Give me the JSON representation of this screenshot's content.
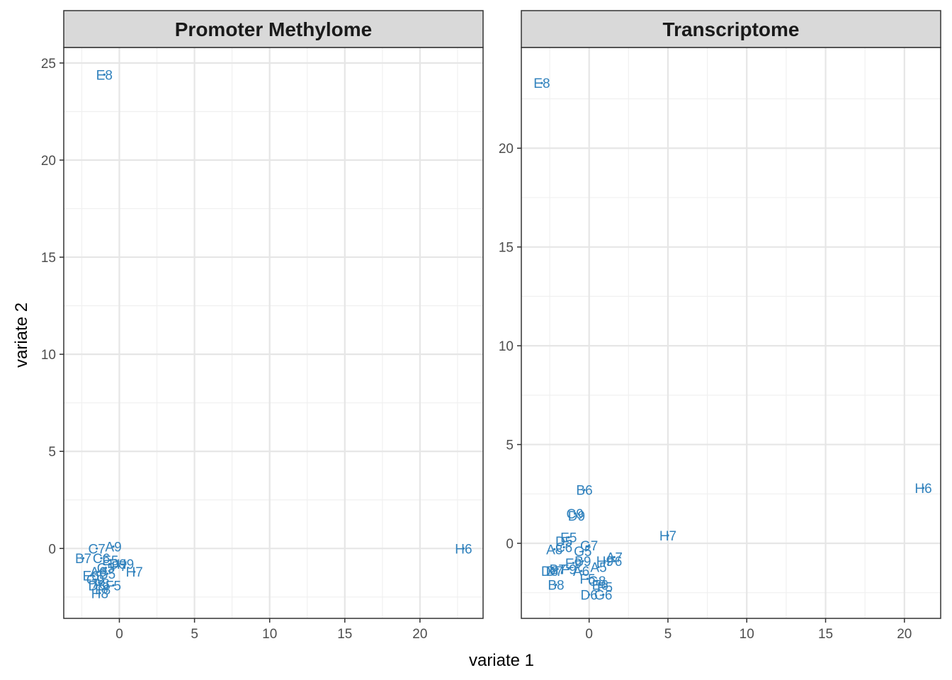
{
  "xlabel": "variate 1",
  "ylabel": "variate 2",
  "point_color": "#3182bd",
  "chart_data": [
    {
      "type": "scatter",
      "title": "Promoter Methylome",
      "xlim": [
        -3.7,
        24.2
      ],
      "ylim": [
        -3.6,
        25.8
      ],
      "xticks": [
        0,
        5,
        10,
        15,
        20
      ],
      "yticks": [
        0,
        5,
        10,
        15,
        20,
        25
      ],
      "points": [
        {
          "label": "E8",
          "x": -1.0,
          "y": 24.4
        },
        {
          "label": "H6",
          "x": 22.9,
          "y": 0.0
        },
        {
          "label": "A9",
          "x": -0.4,
          "y": 0.1
        },
        {
          "label": "C7",
          "x": -1.5,
          "y": 0.0
        },
        {
          "label": "B7",
          "x": -2.4,
          "y": -0.5
        },
        {
          "label": "C6",
          "x": -1.2,
          "y": -0.5
        },
        {
          "label": "E5",
          "x": -0.6,
          "y": -0.6
        },
        {
          "label": "D9",
          "x": -0.1,
          "y": -0.8
        },
        {
          "label": "H9",
          "x": 0.4,
          "y": -0.8
        },
        {
          "label": "F7",
          "x": 0.0,
          "y": -0.9
        },
        {
          "label": "H7",
          "x": 1.0,
          "y": -1.2
        },
        {
          "label": "G5",
          "x": -0.9,
          "y": -1.0
        },
        {
          "label": "A6",
          "x": -1.4,
          "y": -1.2
        },
        {
          "label": "B5",
          "x": -0.8,
          "y": -1.3
        },
        {
          "label": "E6",
          "x": -1.9,
          "y": -1.4
        },
        {
          "label": "G9",
          "x": -1.6,
          "y": -1.6
        },
        {
          "label": "A8",
          "x": -1.2,
          "y": -1.8
        },
        {
          "label": "D8",
          "x": -1.5,
          "y": -1.9
        },
        {
          "label": "F5",
          "x": -0.4,
          "y": -1.9
        },
        {
          "label": "F8",
          "x": -1.1,
          "y": -2.1
        },
        {
          "label": "H8",
          "x": -1.3,
          "y": -2.3
        }
      ]
    },
    {
      "type": "scatter",
      "title": "Transcriptome",
      "xlim": [
        -4.3,
        22.3
      ],
      "ylim": [
        -3.8,
        25.1
      ],
      "xticks": [
        0,
        5,
        10,
        15,
        20
      ],
      "yticks": [
        0,
        5,
        10,
        15,
        20
      ],
      "points": [
        {
          "label": "E8",
          "x": -3.0,
          "y": 23.3
        },
        {
          "label": "H6",
          "x": 21.2,
          "y": 2.8
        },
        {
          "label": "H7",
          "x": 5.0,
          "y": 0.4
        },
        {
          "label": "B6",
          "x": -0.3,
          "y": 2.7
        },
        {
          "label": "C9",
          "x": -0.9,
          "y": 1.5
        },
        {
          "label": "D9",
          "x": -0.8,
          "y": 1.4
        },
        {
          "label": "E5",
          "x": -1.3,
          "y": 0.3
        },
        {
          "label": "D5",
          "x": -1.6,
          "y": 0.1
        },
        {
          "label": "G7",
          "x": 0.0,
          "y": -0.1
        },
        {
          "label": "A8",
          "x": -2.2,
          "y": -0.3
        },
        {
          "label": "C6",
          "x": -1.6,
          "y": -0.2
        },
        {
          "label": "G5",
          "x": -0.4,
          "y": -0.4
        },
        {
          "label": "A7",
          "x": 1.6,
          "y": -0.7
        },
        {
          "label": "H9",
          "x": 1.0,
          "y": -0.9
        },
        {
          "label": "F6",
          "x": 1.6,
          "y": -0.9
        },
        {
          "label": "B9",
          "x": -0.4,
          "y": -0.9
        },
        {
          "label": "E9",
          "x": -1.0,
          "y": -1.0
        },
        {
          "label": "A5",
          "x": 0.6,
          "y": -1.2
        },
        {
          "label": "D7",
          "x": -2.2,
          "y": -1.4
        },
        {
          "label": "B7",
          "x": -2.0,
          "y": -1.3
        },
        {
          "label": "F9",
          "x": -1.3,
          "y": -1.3
        },
        {
          "label": "A6",
          "x": -0.5,
          "y": -1.4
        },
        {
          "label": "D8",
          "x": -2.5,
          "y": -1.4
        },
        {
          "label": "F5",
          "x": -0.1,
          "y": -1.8
        },
        {
          "label": "G8",
          "x": 0.5,
          "y": -1.9
        },
        {
          "label": "B8",
          "x": -2.1,
          "y": -2.1
        },
        {
          "label": "E6",
          "x": 0.7,
          "y": -2.1
        },
        {
          "label": "F5",
          "x": 1.0,
          "y": -2.2
        },
        {
          "label": "D6",
          "x": 0.0,
          "y": -2.6
        },
        {
          "label": "G6",
          "x": 0.9,
          "y": -2.6
        }
      ]
    }
  ]
}
